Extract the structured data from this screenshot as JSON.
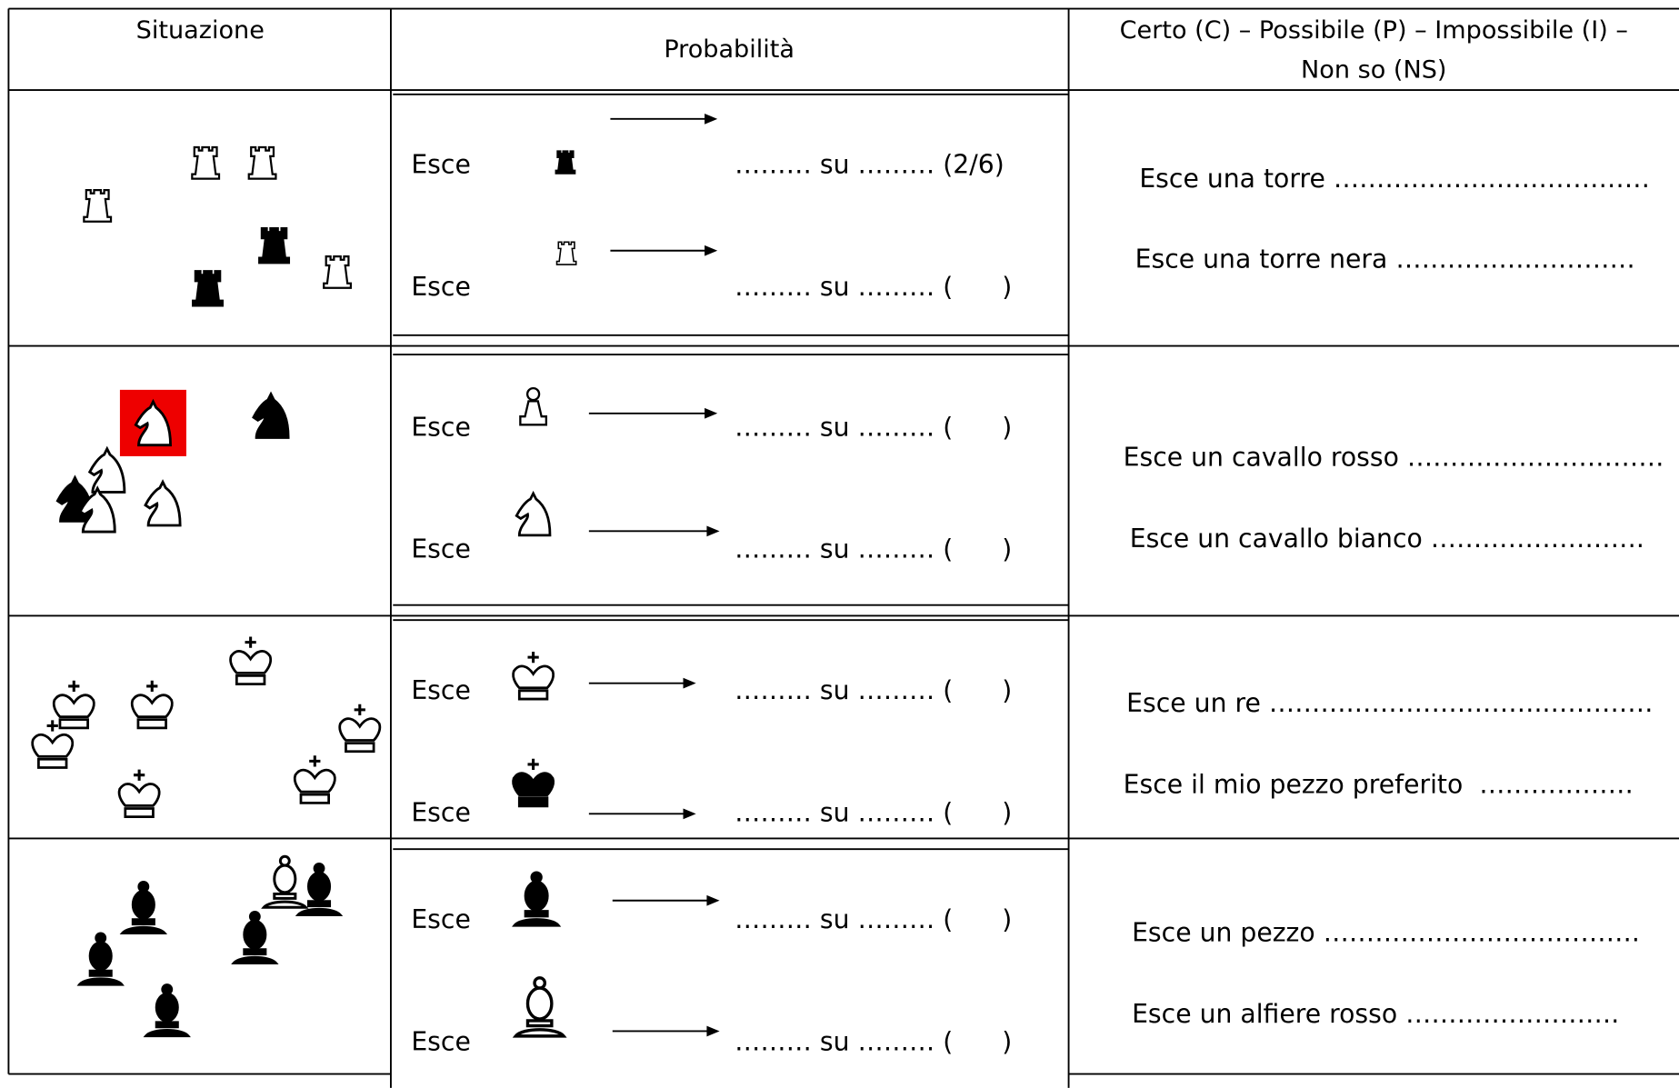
{
  "header": {
    "situation": "Situazione",
    "probability": "Probabilità",
    "judgement": [
      "Certo (C) – Possibile (P) – Impossibile (I) –",
      "Non so (NS)"
    ]
  },
  "rows": [
    {
      "probability": [
        {
          "label": "Esce",
          "blank": "……… su ……… (2/6)"
        },
        {
          "label": "Esce",
          "blank": "……… su ……… (      )"
        }
      ],
      "statements": [
        "Esce una torre ………………….……………",
        "Esce una torre nera …………….…………"
      ]
    },
    {
      "probability": [
        {
          "label": "Esce",
          "blank": "……… su ……… (      )"
        },
        {
          "label": "Esce",
          "blank": "……… su ……… (      )"
        }
      ],
      "statements": [
        "Esce un cavallo rosso …………………………",
        "Esce un cavallo bianco ……………………."
      ]
    },
    {
      "probability": [
        {
          "label": "Esce",
          "blank": "……… su ……… (      )"
        },
        {
          "label": "Esce",
          "blank": "……… su ……… (      )"
        }
      ],
      "statements": [
        "Esce un re ……….…………………..…………",
        "Esce il mio pezzo preferito  ………………"
      ]
    },
    {
      "probability": [
        {
          "label": "Esce",
          "blank": "……… su ……… (      )"
        },
        {
          "label": "Esce",
          "blank": "……… su ……… (      )"
        }
      ],
      "statements": [
        "Esce un pezzo ……………………………….",
        "Esce un alfiere rosso ……………………."
      ]
    }
  ]
}
